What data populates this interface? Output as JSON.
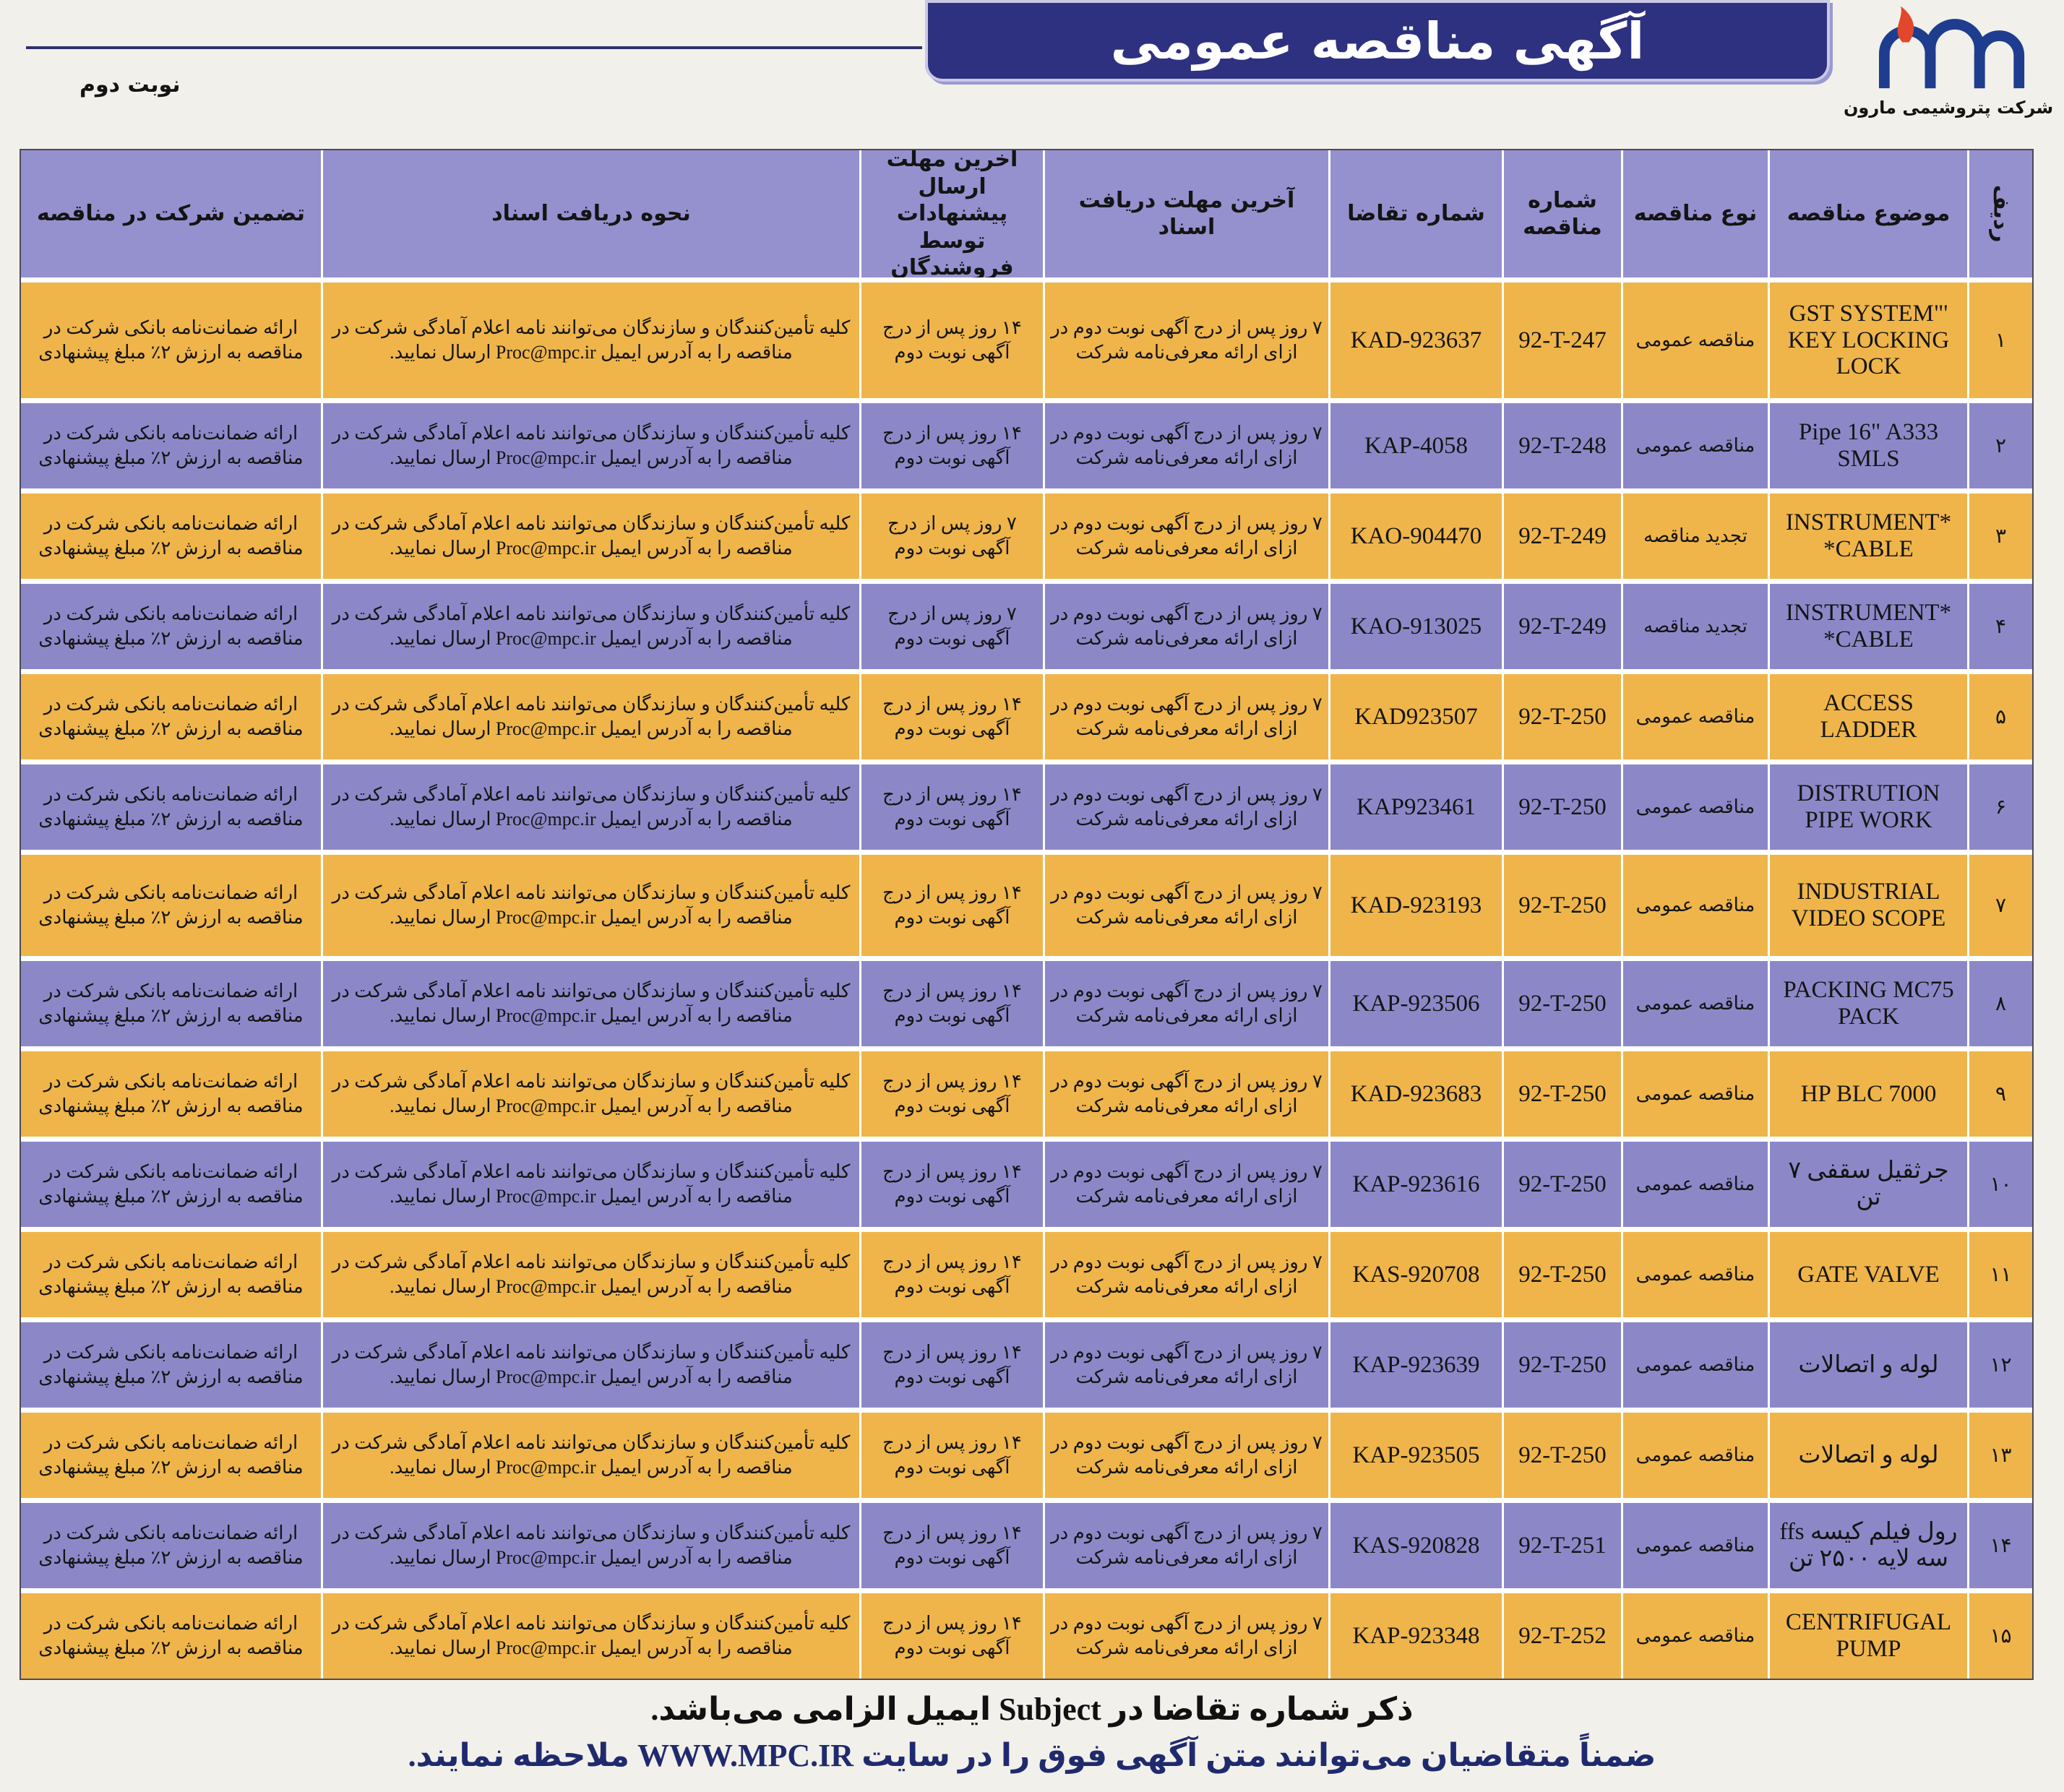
{
  "header": {
    "title": "آگهی مناقصه عمومی",
    "company": "شرکت پتروشیمی مارون",
    "round": "نوبت دوم",
    "logo_icon": "petrochemical-logo-icon"
  },
  "colors": {
    "banner": "#2e3180",
    "header_cells": "#9591cf",
    "row_orange": "#efb54a",
    "row_purple": "#8c88c8",
    "footer_link_line": "#1f2a6e"
  },
  "table": {
    "headers": [
      "ردیف",
      "موضوع مناقصه",
      "نوع مناقصه",
      "شماره مناقصه",
      "شماره تقاضا",
      "آخرین مهلت دریافت اسناد",
      "آخرین مهلت ارسال پیشنهادات توسط فروشندگان",
      "نحوه دریافت اسناد",
      "تضمین شرکت در مناقصه"
    ],
    "rows": [
      {
        "num": "۱",
        "subject": "'GST SYSTEM\" KEY LOCKING LOCK",
        "type": "مناقصه عمومی",
        "tender_no": "92-T-247",
        "request_no": "KAD-923637",
        "doc_deadline": "۷ روز پس از درج آگهی نوبت دوم در ازای ارائه معرفی‌نامه شرکت",
        "bid_deadline": "۱۴ روز پس از درج آگهی نوبت دوم",
        "doc_method": "کلیه تأمین‌کنندگان و سازندگان می‌توانند نامه اعلام آمادگی شرکت در مناقصه را به آدرس ایمیل Proc@mpc.ir ارسال نمایید.",
        "guarantee": "ارائه ضمانت‌نامه بانکی شرکت در مناقصه به ارزش ۲٪ مبلغ پیشنهادی"
      },
      {
        "num": "۲",
        "subject": "Pipe 16\" A333 SMLS",
        "type": "مناقصه عمومی",
        "tender_no": "92-T-248",
        "request_no": "KAP-4058",
        "doc_deadline": "۷ روز پس از درج آگهی نوبت دوم در ازای ارائه معرفی‌نامه شرکت",
        "bid_deadline": "۱۴ روز پس از درج آگهی نوبت دوم",
        "doc_method": "کلیه تأمین‌کنندگان و سازندگان می‌توانند نامه اعلام آمادگی شرکت در مناقصه را به آدرس ایمیل Proc@mpc.ir ارسال نمایید.",
        "guarantee": "ارائه ضمانت‌نامه بانکی شرکت در مناقصه به ارزش ۲٪ مبلغ پیشنهادی"
      },
      {
        "num": "۳",
        "subject": "*INSTRUMENT CABLE*",
        "type": "تجدید مناقصه",
        "tender_no": "92-T-249",
        "request_no": "KAO-904470",
        "doc_deadline": "۷ روز پس از درج آگهی نوبت دوم در ازای ارائه معرفی‌نامه شرکت",
        "bid_deadline": "۷ روز پس از درج آگهی نوبت دوم",
        "doc_method": "کلیه تأمین‌کنندگان و سازندگان می‌توانند نامه اعلام آمادگی شرکت در مناقصه را به آدرس ایمیل Proc@mpc.ir ارسال نمایید.",
        "guarantee": "ارائه ضمانت‌نامه بانکی شرکت در مناقصه به ارزش ۲٪ مبلغ پیشنهادی"
      },
      {
        "num": "۴",
        "subject": "*INSTRUMENT CABLE*",
        "type": "تجدید مناقصه",
        "tender_no": "92-T-249",
        "request_no": "KAO-913025",
        "doc_deadline": "۷ روز پس از درج آگهی نوبت دوم در ازای ارائه معرفی‌نامه شرکت",
        "bid_deadline": "۷ روز پس از درج آگهی نوبت دوم",
        "doc_method": "کلیه تأمین‌کنندگان و سازندگان می‌توانند نامه اعلام آمادگی شرکت در مناقصه را به آدرس ایمیل Proc@mpc.ir ارسال نمایید.",
        "guarantee": "ارائه ضمانت‌نامه بانکی شرکت در مناقصه به ارزش ۲٪ مبلغ پیشنهادی"
      },
      {
        "num": "۵",
        "subject": "ACCESS LADDER",
        "type": "مناقصه عمومی",
        "tender_no": "92-T-250",
        "request_no": "KAD923507",
        "doc_deadline": "۷ روز پس از درج آگهی نوبت دوم در ازای ارائه معرفی‌نامه شرکت",
        "bid_deadline": "۱۴ روز پس از درج آگهی نوبت دوم",
        "doc_method": "کلیه تأمین‌کنندگان و سازندگان می‌توانند نامه اعلام آمادگی شرکت در مناقصه را به آدرس ایمیل Proc@mpc.ir ارسال نمایید.",
        "guarantee": "ارائه ضمانت‌نامه بانکی شرکت در مناقصه به ارزش ۲٪ مبلغ پیشنهادی"
      },
      {
        "num": "۶",
        "subject": "DISTRUTION PIPE WORK",
        "type": "مناقصه عمومی",
        "tender_no": "92-T-250",
        "request_no": "KAP923461",
        "doc_deadline": "۷ روز پس از درج آگهی نوبت دوم در ازای ارائه معرفی‌نامه شرکت",
        "bid_deadline": "۱۴ روز پس از درج آگهی نوبت دوم",
        "doc_method": "کلیه تأمین‌کنندگان و سازندگان می‌توانند نامه اعلام آمادگی شرکت در مناقصه را به آدرس ایمیل Proc@mpc.ir ارسال نمایید.",
        "guarantee": "ارائه ضمانت‌نامه بانکی شرکت در مناقصه به ارزش ۲٪ مبلغ پیشنهادی"
      },
      {
        "num": "۷",
        "subject": "INDUSTRIAL VIDEO SCOPE",
        "type": "مناقصه عمومی",
        "tender_no": "92-T-250",
        "request_no": "KAD-923193",
        "doc_deadline": "۷ روز پس از درج آگهی نوبت دوم در ازای ارائه معرفی‌نامه شرکت",
        "bid_deadline": "۱۴ روز پس از درج آگهی نوبت دوم",
        "doc_method": "کلیه تأمین‌کنندگان و سازندگان می‌توانند نامه اعلام آمادگی شرکت در مناقصه را به آدرس ایمیل Proc@mpc.ir ارسال نمایید.",
        "guarantee": "ارائه ضمانت‌نامه بانکی شرکت در مناقصه به ارزش ۲٪ مبلغ پیشنهادی"
      },
      {
        "num": "۸",
        "subject": "PACKING MC75 PACK",
        "type": "مناقصه عمومی",
        "tender_no": "92-T-250",
        "request_no": "KAP-923506",
        "doc_deadline": "۷ روز پس از درج آگهی نوبت دوم در ازای ارائه معرفی‌نامه شرکت",
        "bid_deadline": "۱۴ روز پس از درج آگهی نوبت دوم",
        "doc_method": "کلیه تأمین‌کنندگان و سازندگان می‌توانند نامه اعلام آمادگی شرکت در مناقصه را به آدرس ایمیل Proc@mpc.ir ارسال نمایید.",
        "guarantee": "ارائه ضمانت‌نامه بانکی شرکت در مناقصه به ارزش ۲٪ مبلغ پیشنهادی"
      },
      {
        "num": "۹",
        "subject": "HP BLC 7000",
        "type": "مناقصه عمومی",
        "tender_no": "92-T-250",
        "request_no": "KAD-923683",
        "doc_deadline": "۷ روز پس از درج آگهی نوبت دوم در ازای ارائه معرفی‌نامه شرکت",
        "bid_deadline": "۱۴ روز پس از درج آگهی نوبت دوم",
        "doc_method": "کلیه تأمین‌کنندگان و سازندگان می‌توانند نامه اعلام آمادگی شرکت در مناقصه را به آدرس ایمیل Proc@mpc.ir ارسال نمایید.",
        "guarantee": "ارائه ضمانت‌نامه بانکی شرکت در مناقصه به ارزش ۲٪ مبلغ پیشنهادی"
      },
      {
        "num": "۱۰",
        "subject": "جرثقیل سقفی ۷ تن",
        "type": "مناقصه عمومی",
        "tender_no": "92-T-250",
        "request_no": "KAP-923616",
        "doc_deadline": "۷ روز پس از درج آگهی نوبت دوم در ازای ارائه معرفی‌نامه شرکت",
        "bid_deadline": "۱۴ روز پس از درج آگهی نوبت دوم",
        "doc_method": "کلیه تأمین‌کنندگان و سازندگان می‌توانند نامه اعلام آمادگی شرکت در مناقصه را به آدرس ایمیل Proc@mpc.ir ارسال نمایید.",
        "guarantee": "ارائه ضمانت‌نامه بانکی شرکت در مناقصه به ارزش ۲٪ مبلغ پیشنهادی"
      },
      {
        "num": "۱۱",
        "subject": "GATE VALVE",
        "type": "مناقصه عمومی",
        "tender_no": "92-T-250",
        "request_no": "KAS-920708",
        "doc_deadline": "۷ روز پس از درج آگهی نوبت دوم در ازای ارائه معرفی‌نامه شرکت",
        "bid_deadline": "۱۴ روز پس از درج آگهی نوبت دوم",
        "doc_method": "کلیه تأمین‌کنندگان و سازندگان می‌توانند نامه اعلام آمادگی شرکت در مناقصه را به آدرس ایمیل Proc@mpc.ir ارسال نمایید.",
        "guarantee": "ارائه ضمانت‌نامه بانکی شرکت در مناقصه به ارزش ۲٪ مبلغ پیشنهادی"
      },
      {
        "num": "۱۲",
        "subject": "لوله و اتصالات",
        "type": "مناقصه عمومی",
        "tender_no": "92-T-250",
        "request_no": "KAP-923639",
        "doc_deadline": "۷ روز پس از درج آگهی نوبت دوم در ازای ارائه معرفی‌نامه شرکت",
        "bid_deadline": "۱۴ روز پس از درج آگهی نوبت دوم",
        "doc_method": "کلیه تأمین‌کنندگان و سازندگان می‌توانند نامه اعلام آمادگی شرکت در مناقصه را به آدرس ایمیل Proc@mpc.ir ارسال نمایید.",
        "guarantee": "ارائه ضمانت‌نامه بانکی شرکت در مناقصه به ارزش ۲٪ مبلغ پیشنهادی"
      },
      {
        "num": "۱۳",
        "subject": "لوله و اتصالات",
        "type": "مناقصه عمومی",
        "tender_no": "92-T-250",
        "request_no": "KAP-923505",
        "doc_deadline": "۷ روز پس از درج آگهی نوبت دوم در ازای ارائه معرفی‌نامه شرکت",
        "bid_deadline": "۱۴ روز پس از درج آگهی نوبت دوم",
        "doc_method": "کلیه تأمین‌کنندگان و سازندگان می‌توانند نامه اعلام آمادگی شرکت در مناقصه را به آدرس ایمیل Proc@mpc.ir ارسال نمایید.",
        "guarantee": "ارائه ضمانت‌نامه بانکی شرکت در مناقصه به ارزش ۲٪ مبلغ پیشنهادی"
      },
      {
        "num": "۱۴",
        "subject": "رول فیلم کیسه ffs سه لایه ۲۵۰۰ تن",
        "type": "مناقصه عمومی",
        "tender_no": "92-T-251",
        "request_no": "KAS-920828",
        "doc_deadline": "۷ روز پس از درج آگهی نوبت دوم در ازای ارائه معرفی‌نامه شرکت",
        "bid_deadline": "۱۴ روز پس از درج آگهی نوبت دوم",
        "doc_method": "کلیه تأمین‌کنندگان و سازندگان می‌توانند نامه اعلام آمادگی شرکت در مناقصه را به آدرس ایمیل Proc@mpc.ir ارسال نمایید.",
        "guarantee": "ارائه ضمانت‌نامه بانکی شرکت در مناقصه به ارزش ۲٪ مبلغ پیشنهادی"
      },
      {
        "num": "۱۵",
        "subject": "CENTRIFUGAL PUMP",
        "type": "مناقصه عمومی",
        "tender_no": "92-T-252",
        "request_no": "KAP-923348",
        "doc_deadline": "۷ روز پس از درج آگهی نوبت دوم در ازای ارائه معرفی‌نامه شرکت",
        "bid_deadline": "۱۴ روز پس از درج آگهی نوبت دوم",
        "doc_method": "کلیه تأمین‌کنندگان و سازندگان می‌توانند نامه اعلام آمادگی شرکت در مناقصه را به آدرس ایمیل Proc@mpc.ir ارسال نمایید.",
        "guarantee": "ارائه ضمانت‌نامه بانکی شرکت در مناقصه به ارزش ۲٪ مبلغ پیشنهادی"
      }
    ]
  },
  "footer": {
    "line1": "ذکر شماره تقاضا در Subject ایمیل الزامی می‌باشد.",
    "line2": "ضمناً متقاضیان می‌توانند متن آگهی فوق را در سایت WWW.MPC.IR ملاحظه نمایند."
  }
}
